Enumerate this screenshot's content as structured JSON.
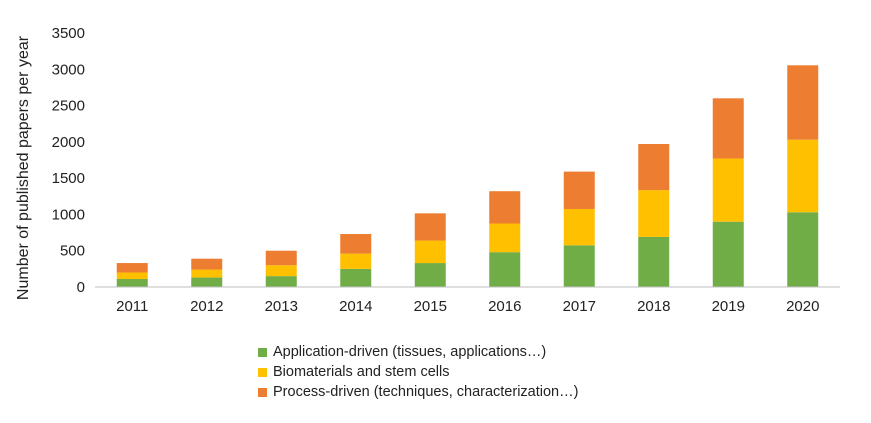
{
  "chart_data": {
    "type": "bar",
    "stacked": true,
    "categories": [
      "2011",
      "2012",
      "2013",
      "2014",
      "2015",
      "2016",
      "2017",
      "2018",
      "2019",
      "2020"
    ],
    "series": [
      {
        "name": "Application-driven (tissues, applications…)",
        "color": "#70ad47",
        "values": [
          110,
          130,
          150,
          250,
          330,
          480,
          575,
          690,
          900,
          1030
        ]
      },
      {
        "name": "Biomaterials and stem cells",
        "color": "#ffc000",
        "values": [
          90,
          110,
          150,
          210,
          310,
          395,
          500,
          645,
          870,
          1000
        ]
      },
      {
        "name": "Process-driven (techniques, characterization…)",
        "color": "#ed7d31",
        "values": [
          130,
          150,
          200,
          270,
          375,
          445,
          515,
          635,
          830,
          1025
        ]
      }
    ],
    "xlabel": "",
    "ylabel": "Number of published papers per year",
    "ylim": [
      0,
      3500
    ],
    "yticks": [
      "0",
      "500",
      "1000",
      "1500",
      "2000",
      "2500",
      "3000",
      "3500"
    ],
    "grid": false,
    "legend_position": "bottom"
  }
}
